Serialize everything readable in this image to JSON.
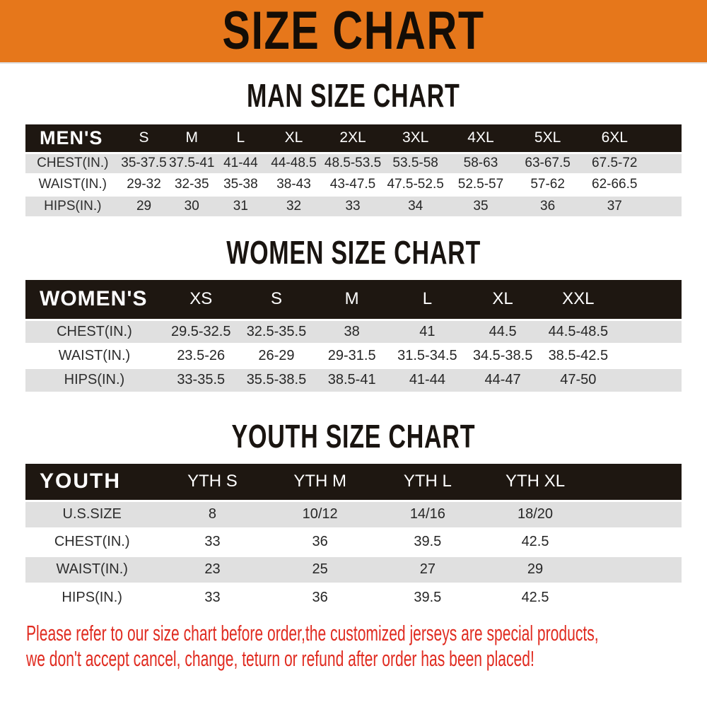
{
  "banner": {
    "title": "SIZE CHART"
  },
  "colors": {
    "accent_orange": "#e6771b",
    "header_black": "#1e1711",
    "row_gray": "#e0e0e0",
    "note_red": "#e02b20"
  },
  "sections": [
    {
      "heading": "MAN SIZE CHART",
      "table": {
        "header_label": "MEN'S",
        "columns": [
          "S",
          "M",
          "L",
          "XL",
          "2XL",
          "3XL",
          "4XL",
          "5XL",
          "6XL"
        ],
        "rows": [
          {
            "label": "CHEST(IN.)",
            "values": [
              "35-37.5",
              "37.5-41",
              "41-44",
              "44-48.5",
              "48.5-53.5",
              "53.5-58",
              "58-63",
              "63-67.5",
              "67.5-72"
            ]
          },
          {
            "label": "WAIST(IN.)",
            "values": [
              "29-32",
              "32-35",
              "35-38",
              "38-43",
              "43-47.5",
              "47.5-52.5",
              "52.5-57",
              "57-62",
              "62-66.5"
            ]
          },
          {
            "label": "HIPS(IN.)",
            "values": [
              "29",
              "30",
              "31",
              "32",
              "33",
              "34",
              "35",
              "36",
              "37"
            ]
          }
        ]
      }
    },
    {
      "heading": "WOMEN SIZE CHART",
      "table": {
        "header_label": "WOMEN'S",
        "columns": [
          "XS",
          "S",
          "M",
          "L",
          "XL",
          "XXL"
        ],
        "rows": [
          {
            "label": "CHEST(IN.)",
            "values": [
              "29.5-32.5",
              "32.5-35.5",
              "38",
              "41",
              "44.5",
              "44.5-48.5"
            ]
          },
          {
            "label": "WAIST(IN.)",
            "values": [
              "23.5-26",
              "26-29",
              "29-31.5",
              "31.5-34.5",
              "34.5-38.5",
              "38.5-42.5"
            ]
          },
          {
            "label": "HIPS(IN.)",
            "values": [
              "33-35.5",
              "35.5-38.5",
              "38.5-41",
              "41-44",
              "44-47",
              "47-50"
            ]
          }
        ]
      }
    },
    {
      "heading": "YOUTH SIZE CHART",
      "table": {
        "header_label": "YOUTH",
        "columns": [
          "YTH S",
          "YTH M",
          "YTH L",
          "YTH XL"
        ],
        "rows": [
          {
            "label": "U.S.SIZE",
            "values": [
              "8",
              "10/12",
              "14/16",
              "18/20"
            ]
          },
          {
            "label": "CHEST(IN.)",
            "values": [
              "33",
              "36",
              "39.5",
              "42.5"
            ]
          },
          {
            "label": "WAIST(IN.)",
            "values": [
              "23",
              "25",
              "27",
              "29"
            ]
          },
          {
            "label": "HIPS(IN.)",
            "values": [
              "33",
              "36",
              "39.5",
              "42.5"
            ]
          }
        ]
      }
    }
  ],
  "note": {
    "line1": "Please refer to our size chart before order,the customized jerseys are special products,",
    "line2": "we don't accept cancel, change, teturn or refund after order has been placed!"
  }
}
